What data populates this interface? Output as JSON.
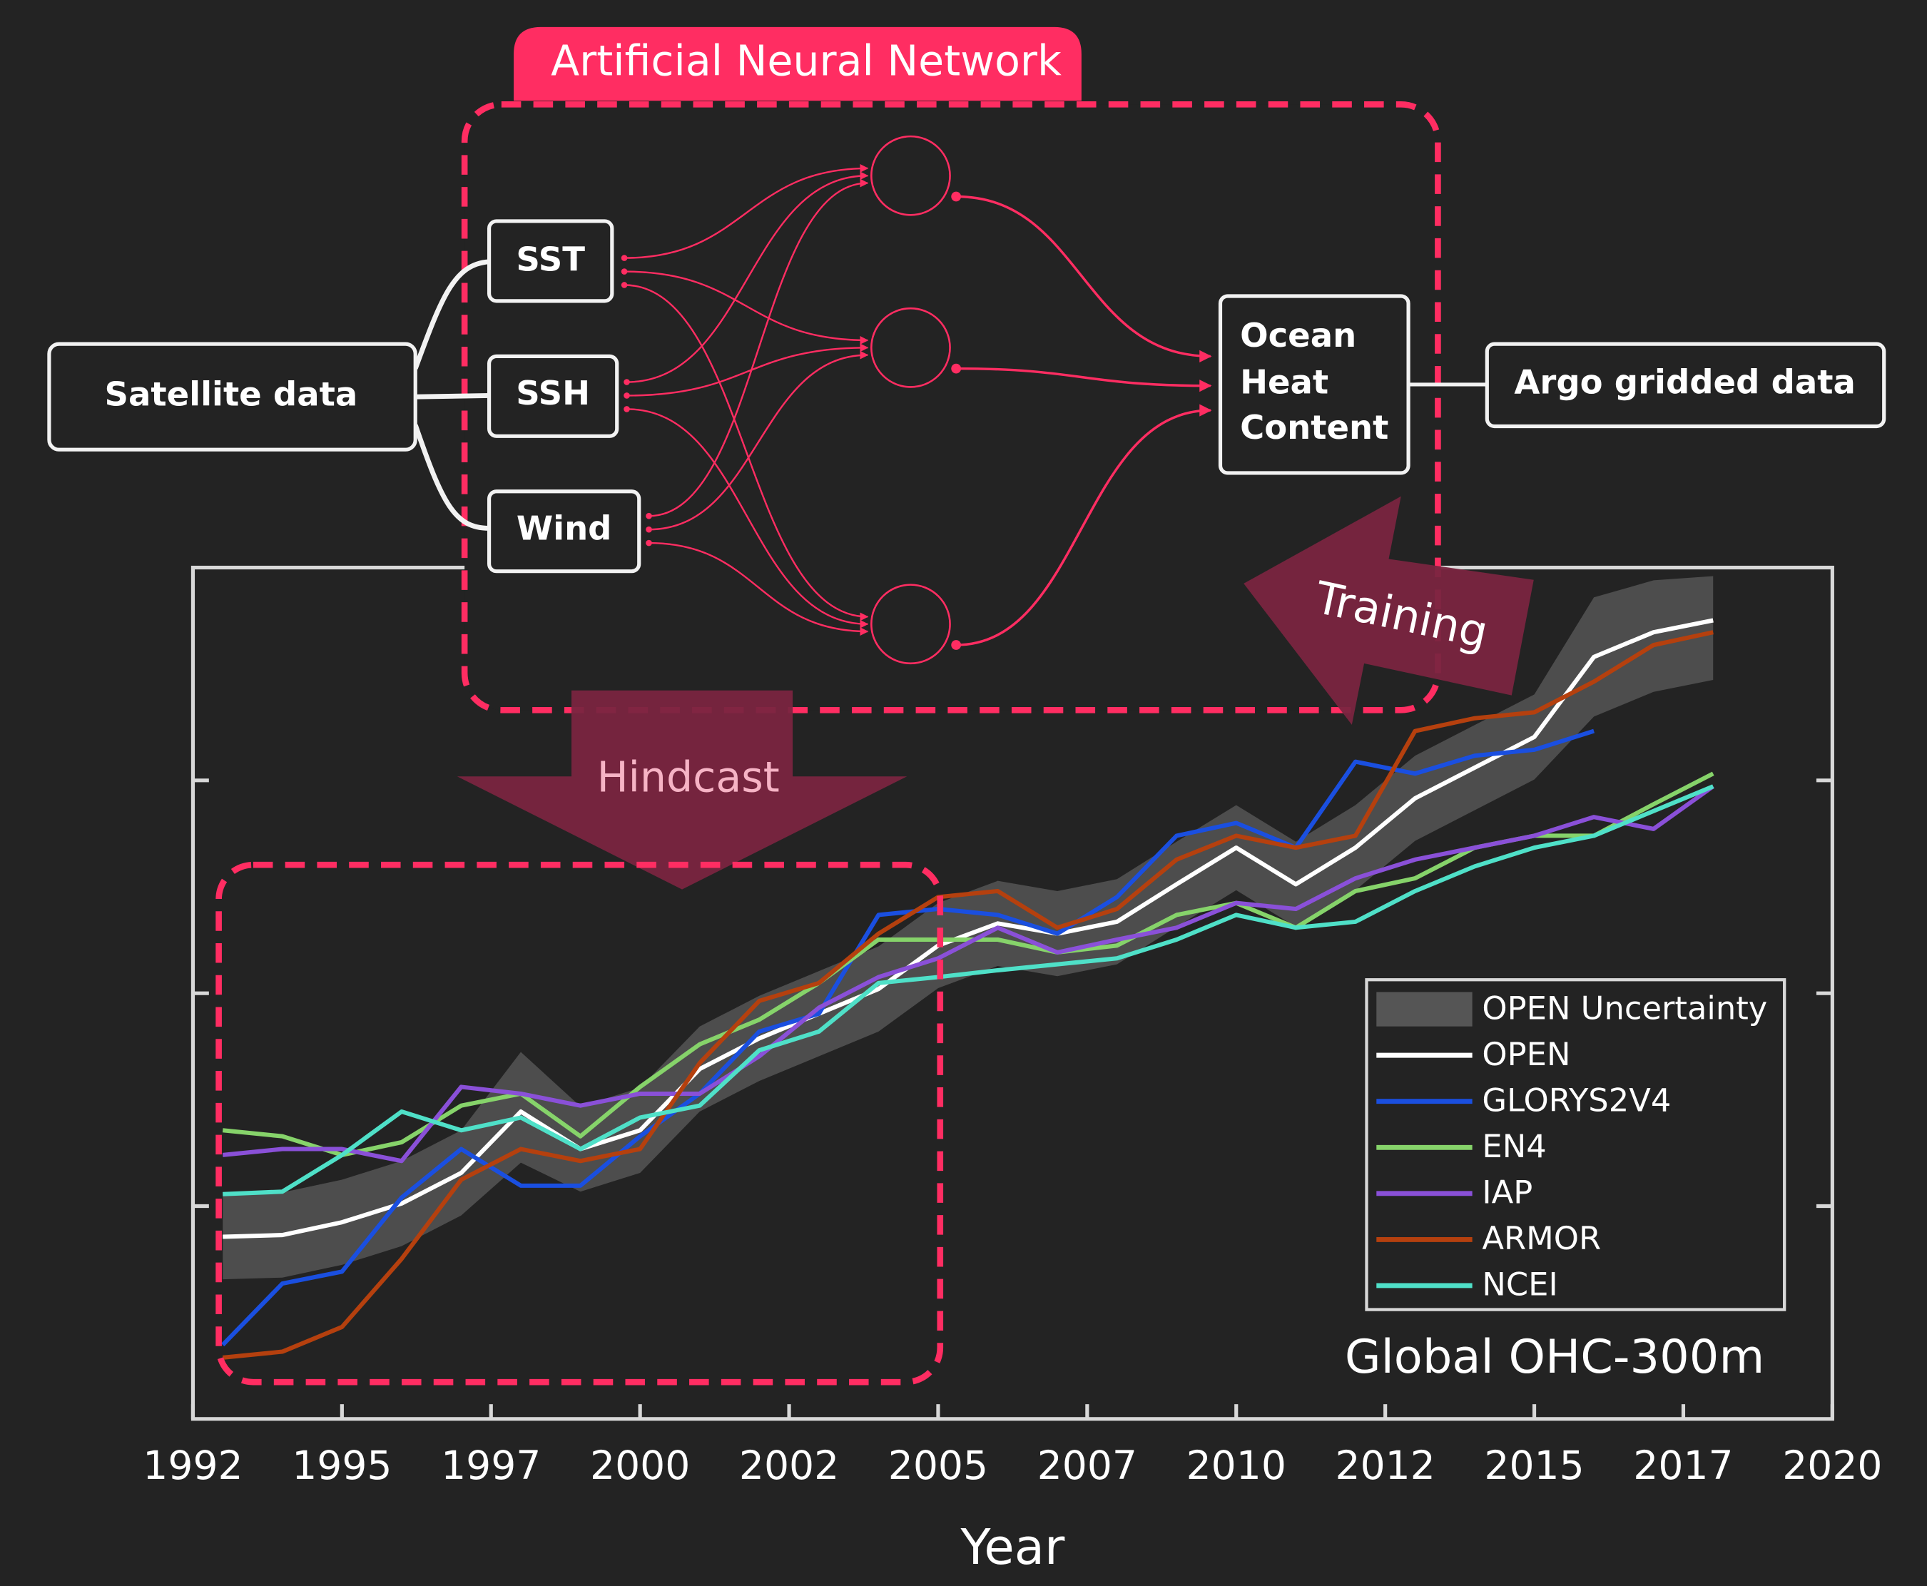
{
  "diagram": {
    "title": "Artificial Neural Network",
    "inputs": [
      "SST",
      "SSH",
      "Wind"
    ],
    "source": "Satellite data",
    "output": [
      "Ocean",
      "Heat",
      "Content"
    ],
    "target": "Argo gridded data",
    "training": "Training",
    "hindcast": "Hindcast"
  },
  "chart_data": {
    "type": "line",
    "title": "Global OHC-300m",
    "xlabel": "Year",
    "x": [
      1993,
      1994,
      1995,
      1996,
      1997,
      1998,
      1999,
      2000,
      2001,
      2002,
      2003,
      2004,
      2005,
      2006,
      2007,
      2008,
      2009,
      2010,
      2011,
      2012,
      2013,
      2014,
      2015,
      2016,
      2017,
      2018
    ],
    "xlim": [
      1992.5,
      2020
    ],
    "xticks": [
      {
        "value": 1992.5,
        "label": "1992"
      },
      1995,
      {
        "value": 1997.5,
        "label": "1997"
      },
      2000,
      {
        "value": 2002.5,
        "label": "2002"
      },
      2005,
      {
        "value": 2007.5,
        "label": "2007"
      },
      2010,
      {
        "value": 2012.5,
        "label": "2012"
      },
      2015,
      {
        "value": 2017.5,
        "label": "2017"
      },
      2020
    ],
    "ylim": [
      0,
      100
    ],
    "yticks": [
      25,
      50,
      75
    ],
    "legend": "lower right",
    "series": [
      {
        "name": "OPEN Uncertainty",
        "color": "#555555",
        "lower": [
          16.4,
          16.6,
          18.1,
          20.3,
          23.9,
          30.1,
          26.7,
          28.9,
          36.1,
          39.7,
          42.6,
          45.5,
          50.6,
          53.2,
          52.0,
          53.4,
          57.8,
          62.1,
          57.8,
          62.1,
          67.9,
          71.5,
          75.1,
          82.5,
          85.4,
          86.8
        ],
        "upper": [
          26.4,
          26.6,
          28.1,
          30.3,
          33.9,
          43.1,
          36.7,
          38.9,
          46.1,
          49.7,
          52.6,
          55.5,
          60.6,
          63.2,
          62.0,
          63.4,
          67.8,
          72.1,
          67.8,
          72.1,
          77.9,
          81.5,
          85.1,
          96.5,
          98.5,
          99.0
        ]
      },
      {
        "name": "OPEN",
        "color": "#ffffff",
        "values": [
          21.4,
          21.6,
          23.1,
          25.3,
          28.9,
          36.1,
          31.7,
          33.9,
          41.1,
          44.7,
          47.6,
          50.5,
          55.6,
          58.2,
          57.0,
          58.4,
          62.8,
          67.1,
          62.8,
          67.1,
          72.9,
          76.5,
          80.1,
          89.5,
          92.4,
          93.8
        ]
      },
      {
        "name": "GLORYS2V4",
        "color": "#1a4fe0",
        "values": [
          8.7,
          15.9,
          17.3,
          26.0,
          31.7,
          27.4,
          27.4,
          33.2,
          38.2,
          45.5,
          47.6,
          59.2,
          59.9,
          59.2,
          57.0,
          61.3,
          68.5,
          70.0,
          67.1,
          77.2,
          75.8,
          77.9,
          78.6,
          80.8,
          null,
          null
        ]
      },
      {
        "name": "EN4",
        "color": "#86d36a",
        "values": [
          33.9,
          33.2,
          31.0,
          32.5,
          36.8,
          38.2,
          33.2,
          39.0,
          44.0,
          46.9,
          51.2,
          56.3,
          56.3,
          56.3,
          54.8,
          55.6,
          59.2,
          60.6,
          57.7,
          62.0,
          63.5,
          67.1,
          68.5,
          68.5,
          72.2,
          75.8
        ]
      },
      {
        "name": "IAP",
        "color": "#8a50d8",
        "values": [
          31.0,
          31.7,
          31.7,
          30.3,
          39.0,
          38.2,
          36.8,
          38.2,
          38.2,
          42.6,
          48.3,
          51.9,
          54.1,
          57.7,
          54.8,
          56.3,
          57.7,
          60.6,
          59.9,
          63.5,
          65.7,
          67.1,
          68.5,
          70.7,
          69.3,
          74.3
        ]
      },
      {
        "name": "ARMOR",
        "color": "#b5400e",
        "values": [
          7.2,
          7.9,
          10.8,
          18.8,
          28.1,
          31.7,
          30.3,
          31.7,
          41.8,
          49.1,
          51.2,
          57.0,
          61.3,
          62.0,
          57.7,
          59.9,
          65.7,
          68.5,
          67.1,
          68.5,
          80.8,
          82.3,
          83.0,
          86.6,
          90.9,
          92.4
        ]
      },
      {
        "name": "NCEI",
        "color": "#4fe0c8",
        "values": [
          26.4,
          26.7,
          31.0,
          36.1,
          33.9,
          35.4,
          31.7,
          35.4,
          36.8,
          43.3,
          45.5,
          51.2,
          51.9,
          52.7,
          53.4,
          54.1,
          56.3,
          59.2,
          57.7,
          58.4,
          62.0,
          64.9,
          67.1,
          68.5,
          71.4,
          74.3
        ]
      }
    ]
  }
}
